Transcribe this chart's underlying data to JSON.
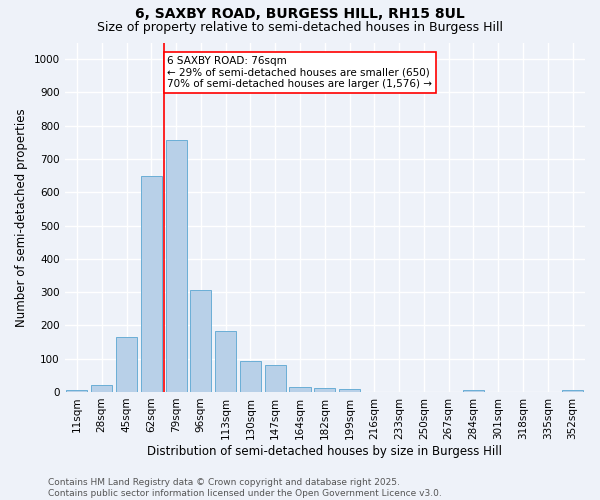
{
  "title1": "6, SAXBY ROAD, BURGESS HILL, RH15 8UL",
  "title2": "Size of property relative to semi-detached houses in Burgess Hill",
  "xlabel": "Distribution of semi-detached houses by size in Burgess Hill",
  "ylabel": "Number of semi-detached properties",
  "categories": [
    "11sqm",
    "28sqm",
    "45sqm",
    "62sqm",
    "79sqm",
    "96sqm",
    "113sqm",
    "130sqm",
    "147sqm",
    "164sqm",
    "182sqm",
    "199sqm",
    "216sqm",
    "233sqm",
    "250sqm",
    "267sqm",
    "284sqm",
    "301sqm",
    "318sqm",
    "335sqm",
    "352sqm"
  ],
  "values": [
    7,
    22,
    165,
    648,
    758,
    305,
    183,
    92,
    80,
    15,
    12,
    10,
    0,
    0,
    0,
    0,
    5,
    0,
    0,
    0,
    7
  ],
  "bar_color": "#b8d0e8",
  "bar_edge_color": "#6aaed6",
  "annotation_text_line1": "6 SAXBY ROAD: 76sqm",
  "annotation_text_line2": "← 29% of semi-detached houses are smaller (650)",
  "annotation_text_line3": "70% of semi-detached houses are larger (1,576) →",
  "red_line_x": 3.5,
  "ylim": [
    0,
    1050
  ],
  "yticks": [
    0,
    100,
    200,
    300,
    400,
    500,
    600,
    700,
    800,
    900,
    1000
  ],
  "footnote1": "Contains HM Land Registry data © Crown copyright and database right 2025.",
  "footnote2": "Contains public sector information licensed under the Open Government Licence v3.0.",
  "background_color": "#eef2f9",
  "grid_color": "#ffffff",
  "title_fontsize": 10,
  "subtitle_fontsize": 9,
  "axis_label_fontsize": 8.5,
  "tick_fontsize": 7.5,
  "annot_fontsize": 7.5,
  "footnote_fontsize": 6.5
}
